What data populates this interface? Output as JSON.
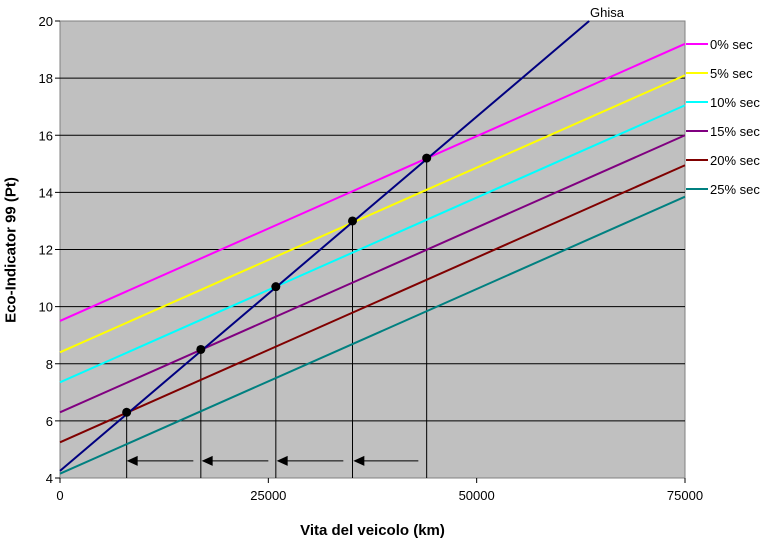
{
  "chart_data": {
    "type": "line",
    "xlabel": "Vita del veicolo (km)",
    "ylabel": "Eco-Indicator 99 (Pt)",
    "xlim": [
      0,
      75000
    ],
    "ylim": [
      4,
      20
    ],
    "xticks": [
      0,
      25000,
      50000,
      75000
    ],
    "xtick_labels": [
      "0",
      "25000",
      "50000",
      "75000"
    ],
    "yticks": [
      4,
      6,
      8,
      10,
      12,
      14,
      16,
      18,
      20
    ],
    "grid": "horizontal",
    "background": "#c0c0c0",
    "legend_position": "right",
    "series": [
      {
        "name": "0% sec",
        "color": "#ff00ff",
        "x": [
          0,
          75000
        ],
        "y": [
          9.5,
          19.2
        ]
      },
      {
        "name": "5% sec",
        "color": "#ffff00",
        "x": [
          0,
          75000
        ],
        "y": [
          8.4,
          18.1
        ]
      },
      {
        "name": "10% sec",
        "color": "#00ffff",
        "x": [
          0,
          75000
        ],
        "y": [
          7.35,
          17.05
        ]
      },
      {
        "name": "15% sec",
        "color": "#800080",
        "x": [
          0,
          75000
        ],
        "y": [
          6.3,
          16.0
        ]
      },
      {
        "name": "20% sec",
        "color": "#800000",
        "x": [
          0,
          75000
        ],
        "y": [
          5.25,
          14.95
        ]
      },
      {
        "name": "25% sec",
        "color": "#008080",
        "x": [
          0,
          75000
        ],
        "y": [
          4.15,
          13.85
        ]
      },
      {
        "name": "Ghisa",
        "color": "#000080",
        "x": [
          0,
          63500
        ],
        "y": [
          4.25,
          20
        ]
      }
    ],
    "intersections": [
      {
        "x": 8000,
        "y": 6.3
      },
      {
        "x": 16900,
        "y": 8.5
      },
      {
        "x": 25900,
        "y": 10.7
      },
      {
        "x": 35100,
        "y": 13.0
      },
      {
        "x": 44000,
        "y": 15.2
      }
    ],
    "arrows": [
      {
        "from_x": 16000,
        "to_x": 8000,
        "y": 4.6
      },
      {
        "from_x": 25000,
        "to_x": 17000,
        "y": 4.6
      },
      {
        "from_x": 34000,
        "to_x": 26000,
        "y": 4.6
      },
      {
        "from_x": 43000,
        "to_x": 35200,
        "y": 4.6
      }
    ]
  }
}
